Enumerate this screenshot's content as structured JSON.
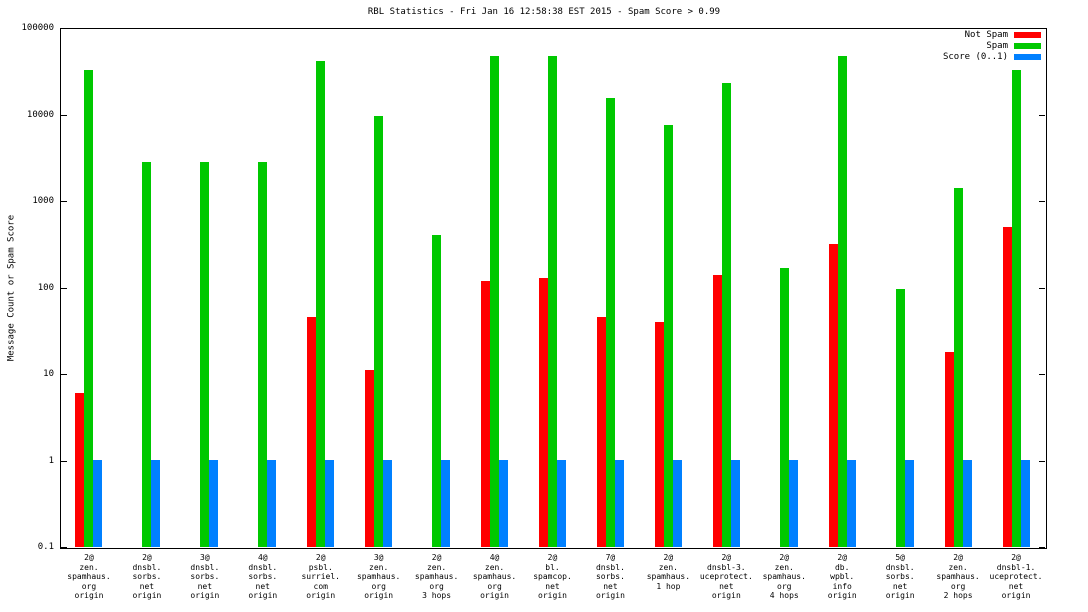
{
  "title": "RBL Statistics - Fri Jan 16 12:58:38 EST 2015 - Spam Score > 0.99",
  "ylabel": "Message Count or Spam Score",
  "chart_data": {
    "type": "bar",
    "y_scale": "log",
    "ylim": [
      0.1,
      100000
    ],
    "y_ticks": [
      "100000",
      "10000",
      "1000",
      "100",
      "10",
      "1",
      "0.1"
    ],
    "grid": false,
    "legend_position": "top-right",
    "categories": [
      [
        "2@",
        "zen.",
        "spamhaus.",
        "org",
        "origin"
      ],
      [
        "2@",
        "dnsbl.",
        "sorbs.",
        "net",
        "origin"
      ],
      [
        "3@",
        "dnsbl.",
        "sorbs.",
        "net",
        "origin"
      ],
      [
        "4@",
        "dnsbl.",
        "sorbs.",
        "net",
        "origin"
      ],
      [
        "2@",
        "psbl.",
        "surriel.",
        "com",
        "origin"
      ],
      [
        "3@",
        "zen.",
        "spamhaus.",
        "org",
        "origin"
      ],
      [
        "2@",
        "zen.",
        "spamhaus.",
        "org",
        "3 hops"
      ],
      [
        "4@",
        "zen.",
        "spamhaus.",
        "org",
        "origin"
      ],
      [
        "2@",
        "bl.",
        "spamcop.",
        "net",
        "origin"
      ],
      [
        "7@",
        "dnsbl.",
        "sorbs.",
        "net",
        "origin"
      ],
      [
        "2@",
        "zen.",
        "spamhaus.",
        "1 hop"
      ],
      [
        "2@",
        "dnsbl-3.",
        "uceprotect.",
        "net",
        "origin"
      ],
      [
        "2@",
        "zen.",
        "spamhaus.",
        "org",
        "4 hops"
      ],
      [
        "2@",
        "db.",
        "wpbl.",
        "info",
        "origin"
      ],
      [
        "5@",
        "dnsbl.",
        "sorbs.",
        "net",
        "origin"
      ],
      [
        "2@",
        "zen.",
        "spamhaus.",
        "org",
        "2 hops"
      ],
      [
        "2@",
        "dnsbl-1.",
        "uceprotect.",
        "net",
        "origin"
      ]
    ],
    "series": [
      {
        "name": "Not Spam",
        "color": "#ff0000",
        "values": [
          6,
          0,
          0,
          0,
          45,
          11,
          0,
          120,
          130,
          45,
          40,
          140,
          0,
          320,
          0,
          18,
          500
        ]
      },
      {
        "name": "Spam",
        "color": "#00c800",
        "values": [
          33000,
          2800,
          2800,
          2800,
          42000,
          9700,
          400,
          48000,
          48000,
          15500,
          7600,
          23000,
          170,
          48000,
          95,
          1400,
          33000
        ]
      },
      {
        "name": "Score (0..1)",
        "color": "#0080ff",
        "values": [
          1,
          1,
          1,
          1,
          1,
          1,
          1,
          1,
          1,
          1,
          1,
          1,
          1,
          1,
          1,
          1,
          1
        ]
      }
    ]
  }
}
